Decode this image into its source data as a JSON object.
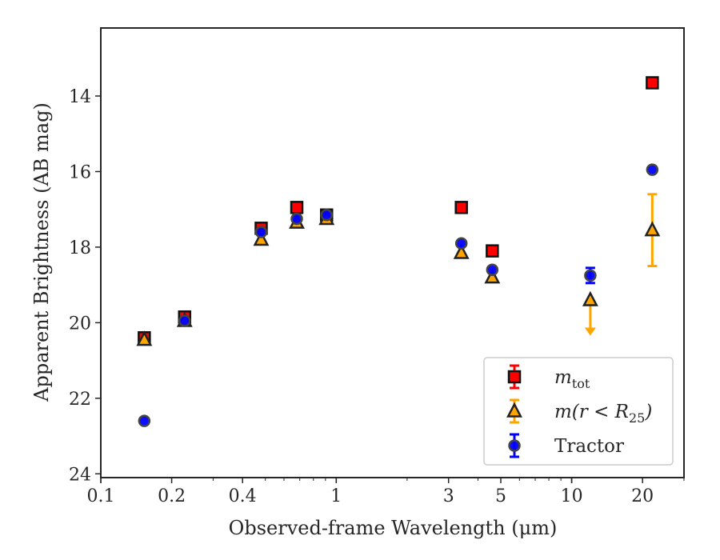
{
  "chart_data": {
    "type": "scatter",
    "xlabel": "Observed-frame Wavelength (μm)",
    "ylabel": "Apparent Brightness (AB mag)",
    "xscale": "log",
    "xlim": [
      0.1,
      30
    ],
    "ylim": [
      24.1,
      12.2
    ],
    "y_inverted": true,
    "legend_position": "lower-right",
    "xticks": [
      {
        "value": 0.1,
        "label": "0.1"
      },
      {
        "value": 0.2,
        "label": "0.2"
      },
      {
        "value": 0.4,
        "label": "0.4"
      },
      {
        "value": 1,
        "label": "1"
      },
      {
        "value": 3,
        "label": "3"
      },
      {
        "value": 5,
        "label": "5"
      },
      {
        "value": 10,
        "label": "10"
      },
      {
        "value": 20,
        "label": "20"
      }
    ],
    "yticks": [
      {
        "value": 14,
        "label": "14"
      },
      {
        "value": 16,
        "label": "16"
      },
      {
        "value": 18,
        "label": "18"
      },
      {
        "value": 20,
        "label": "20"
      },
      {
        "value": 22,
        "label": "22"
      },
      {
        "value": 24,
        "label": "24"
      }
    ],
    "series": [
      {
        "name": "m_tot",
        "label_main": "m",
        "label_sub": "tot",
        "marker": "square",
        "color": "#ff0000",
        "edge_color": "#111111",
        "errbar_color": "#ff0000",
        "points": [
          {
            "x": 0.153,
            "y": 20.4,
            "err": 0.1
          },
          {
            "x": 0.227,
            "y": 19.85,
            "err": 0.1
          },
          {
            "x": 0.48,
            "y": 17.5,
            "err": 0.1
          },
          {
            "x": 0.68,
            "y": 16.95,
            "err": 0.05
          },
          {
            "x": 0.91,
            "y": 17.15,
            "err": 0.05
          },
          {
            "x": 3.4,
            "y": 16.95,
            "err": 0.05
          },
          {
            "x": 4.6,
            "y": 18.1,
            "err": 0.05
          },
          {
            "x": 22,
            "y": 13.65,
            "err": 0.05
          }
        ]
      },
      {
        "name": "m(r < R25)",
        "label_main": "m(r < R",
        "label_sub": "25",
        "label_tail": ")",
        "marker": "triangle",
        "color": "#ffa500",
        "edge_color": "#222222",
        "errbar_color": "#ffa500",
        "points": [
          {
            "x": 0.153,
            "y": 20.45,
            "err": 0.05
          },
          {
            "x": 0.227,
            "y": 19.95,
            "err": 0.05
          },
          {
            "x": 0.48,
            "y": 17.8,
            "err": 0.05
          },
          {
            "x": 0.68,
            "y": 17.35,
            "err": 0.05
          },
          {
            "x": 0.91,
            "y": 17.25,
            "err": 0.05
          },
          {
            "x": 3.4,
            "y": 18.15,
            "err": 0.05
          },
          {
            "x": 4.6,
            "y": 18.8,
            "err": 0.05
          },
          {
            "x": 12,
            "y": 19.4,
            "upper_limit": true,
            "limit_to": 20.3
          },
          {
            "x": 22,
            "y": 17.55,
            "err": 0.95
          }
        ]
      },
      {
        "name": "Tractor",
        "label_main": "Tractor",
        "marker": "circle",
        "color": "#0000ff",
        "edge_color": "#444444",
        "errbar_color": "#0000ff",
        "points": [
          {
            "x": 0.153,
            "y": 22.6,
            "err": 0.05
          },
          {
            "x": 0.227,
            "y": 19.95,
            "err": 0.05
          },
          {
            "x": 0.48,
            "y": 17.6,
            "err": 0.05
          },
          {
            "x": 0.68,
            "y": 17.25,
            "err": 0.05
          },
          {
            "x": 0.91,
            "y": 17.15,
            "err": 0.05
          },
          {
            "x": 3.4,
            "y": 17.9,
            "err": 0.05
          },
          {
            "x": 4.6,
            "y": 18.6,
            "err": 0.05
          },
          {
            "x": 12,
            "y": 18.75,
            "err": 0.2
          },
          {
            "x": 22,
            "y": 15.95,
            "err": 0.05
          }
        ]
      }
    ]
  }
}
